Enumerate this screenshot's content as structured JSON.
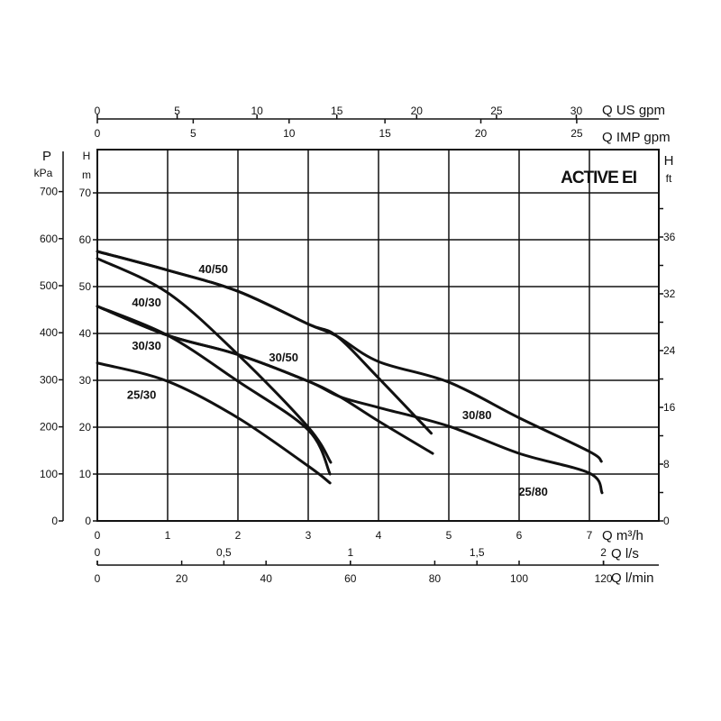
{
  "chart_data": {
    "type": "line",
    "title": "ACTIVE EI",
    "xlabel": "Q m³/h",
    "ylabel": "H m",
    "xlim": [
      0,
      7.3
    ],
    "ylim": [
      0,
      70
    ],
    "grid": true,
    "x_ticks": [
      "0",
      "1",
      "2",
      "3",
      "4",
      "5",
      "6",
      "7"
    ],
    "y_ticks": [
      "0",
      "10",
      "20",
      "30",
      "40",
      "50",
      "60",
      "70"
    ],
    "y_axis_title_top": "H",
    "y_axis_unit": "m",
    "secondary_axes": {
      "pressure": {
        "title": "P",
        "unit": "kPa",
        "ticks": [
          "0",
          "100",
          "200",
          "300",
          "400",
          "500",
          "600",
          "700"
        ]
      },
      "feet": {
        "title": "H",
        "unit": "ft",
        "ticks": [
          "0",
          "8",
          "16",
          "24",
          "32",
          "36"
        ]
      },
      "us_gpm": {
        "label": "Q US gpm",
        "ticks": [
          "0",
          "5",
          "10",
          "15",
          "20",
          "25",
          "30"
        ]
      },
      "imp_gpm": {
        "label": "Q IMP gpm",
        "ticks": [
          "0",
          "5",
          "10",
          "15",
          "20",
          "25"
        ]
      },
      "l_s": {
        "label": "Q l/s",
        "ticks": [
          "0",
          "0,5",
          "1",
          "1,5",
          "2"
        ]
      },
      "l_min": {
        "label": "Q l/min",
        "ticks": [
          "0",
          "20",
          "40",
          "60",
          "80",
          "100",
          "120"
        ]
      }
    },
    "series": [
      {
        "name": "40/50",
        "label_at": [
          1.65,
          53.8
        ],
        "x": [
          0,
          1,
          2,
          3,
          3.4,
          4,
          4.75
        ],
        "y": [
          57.5,
          53.5,
          49,
          42,
          39.5,
          30.5,
          18.7
        ]
      },
      {
        "name": "30/80",
        "label_at": [
          5.4,
          22.7
        ],
        "x": [
          0,
          1,
          2,
          3,
          3.4,
          4,
          5,
          6,
          7,
          7.17
        ],
        "y": [
          57.5,
          53.5,
          49,
          42,
          39.5,
          34,
          29.6,
          22,
          14.8,
          12.7
        ]
      },
      {
        "name": "40/30",
        "label_at": [
          0.7,
          46.7
        ],
        "x": [
          0,
          1,
          2,
          3,
          3.32
        ],
        "y": [
          56,
          48.7,
          35.5,
          20,
          12.5
        ]
      },
      {
        "name": "30/30",
        "label_at": [
          0.7,
          37.5
        ],
        "x": [
          0,
          1,
          2,
          3,
          3.31
        ],
        "y": [
          45.8,
          39.6,
          29.8,
          19.4,
          10
        ]
      },
      {
        "name": "30/50",
        "label_at": [
          2.65,
          35
        ],
        "x": [
          0,
          1,
          2,
          3,
          3.45,
          4,
          4.77
        ],
        "y": [
          45.8,
          39.6,
          35.5,
          29.8,
          26.5,
          21.3,
          14.4
        ]
      },
      {
        "name": "25/80",
        "label_at": [
          6.2,
          6.3
        ],
        "x": [
          0,
          1,
          2,
          3,
          3.45,
          4,
          5,
          6,
          7,
          7.18
        ],
        "y": [
          45.8,
          39.6,
          35.5,
          29.8,
          26.5,
          24.2,
          20.2,
          14.4,
          10.2,
          6
        ]
      },
      {
        "name": "25/30",
        "label_at": [
          0.63,
          27
        ],
        "x": [
          0,
          1,
          2,
          3,
          3.31
        ],
        "y": [
          33.7,
          29.8,
          22,
          11.7,
          8.1
        ]
      }
    ]
  }
}
